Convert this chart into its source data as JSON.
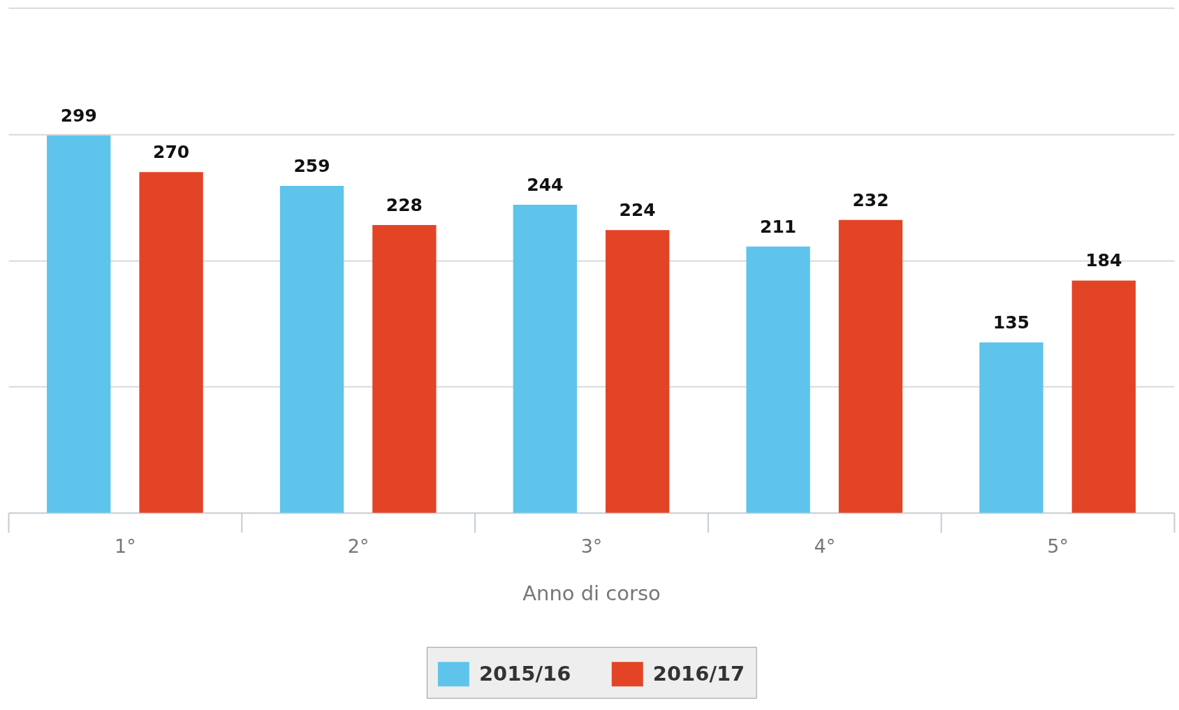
{
  "chart_data": {
    "type": "bar",
    "categories": [
      "1°",
      "2°",
      "3°",
      "4°",
      "5°"
    ],
    "xlabel": "Anno di corso",
    "series": [
      {
        "name": "2015/16",
        "color": "#5ec4ec",
        "values": [
          299,
          259,
          244,
          211,
          135
        ]
      },
      {
        "name": "2016/17",
        "color": "#e34425",
        "values": [
          270,
          228,
          224,
          232,
          184
        ]
      }
    ],
    "ylim": [
      0,
      400
    ],
    "yticks": [
      {
        "value": 100,
        "label": null
      },
      {
        "value": 200,
        "label": null
      },
      {
        "value": 300,
        "label": null
      },
      {
        "value": 400,
        "label": null
      }
    ],
    "tick_labels": "x",
    "grid": "y",
    "legend": "bottom",
    "data_labels": true
  }
}
